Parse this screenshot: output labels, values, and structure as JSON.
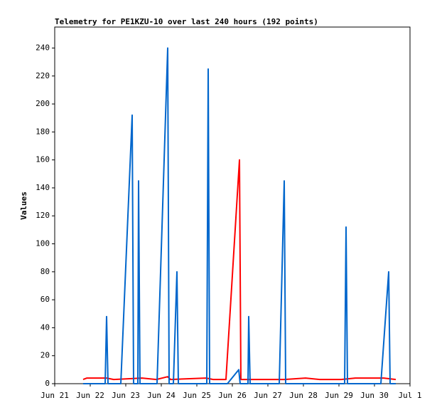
{
  "chart_data": {
    "type": "line",
    "title": "Telemetry for PE1KZU-10 over last 240 hours (192 points)",
    "y_label": "Values",
    "ylim": [
      0,
      255
    ],
    "yticks": [
      0,
      20,
      40,
      60,
      80,
      100,
      120,
      140,
      160,
      180,
      200,
      220,
      240
    ],
    "xlim": [
      21,
      31
    ],
    "xticks": [
      {
        "value": 21,
        "label": "Jun 21"
      },
      {
        "value": 22,
        "label": "Jun 22"
      },
      {
        "value": 23,
        "label": "Jun 23"
      },
      {
        "value": 24,
        "label": "Jun 24"
      },
      {
        "value": 25,
        "label": "Jun 25"
      },
      {
        "value": 26,
        "label": "Jun 26"
      },
      {
        "value": 27,
        "label": "Jun 27"
      },
      {
        "value": 28,
        "label": "Jun 28"
      },
      {
        "value": 29,
        "label": "Jun 29"
      },
      {
        "value": 30,
        "label": "Jun 30"
      },
      {
        "value": 31,
        "label": "Jul 1"
      }
    ],
    "grid": false,
    "series": [
      {
        "color": "#ff0000",
        "x": [
          21.8,
          21.9,
          22.46,
          22.66,
          23.46,
          23.86,
          24.18,
          24.26,
          25.26,
          25.46,
          25.82,
          26.2,
          26.24,
          27.46,
          28.06,
          28.46,
          29.06,
          29.46,
          30.26,
          30.6
        ],
        "values": [
          3,
          4,
          4,
          3,
          4,
          3,
          5,
          3,
          4,
          3,
          3,
          160,
          3,
          3,
          4,
          3,
          3,
          4,
          4,
          3
        ]
      },
      {
        "color": "#0066cc",
        "x": [
          21.8,
          22.42,
          22.46,
          22.5,
          22.86,
          23.18,
          23.22,
          23.34,
          23.36,
          23.4,
          23.88,
          24.18,
          24.22,
          24.34,
          24.44,
          24.48,
          25.28,
          25.32,
          25.36,
          25.86,
          26.18,
          26.22,
          26.44,
          26.46,
          26.5,
          27.32,
          27.46,
          27.5,
          29.16,
          29.2,
          29.24,
          30.18,
          30.4,
          30.44,
          30.6
        ],
        "values": [
          0,
          0,
          48,
          0,
          0,
          192,
          0,
          0,
          145,
          0,
          0,
          240,
          0,
          0,
          80,
          0,
          0,
          225,
          0,
          0,
          10,
          0,
          0,
          48,
          0,
          0,
          145,
          0,
          0,
          112,
          0,
          0,
          80,
          0,
          0
        ]
      }
    ]
  }
}
